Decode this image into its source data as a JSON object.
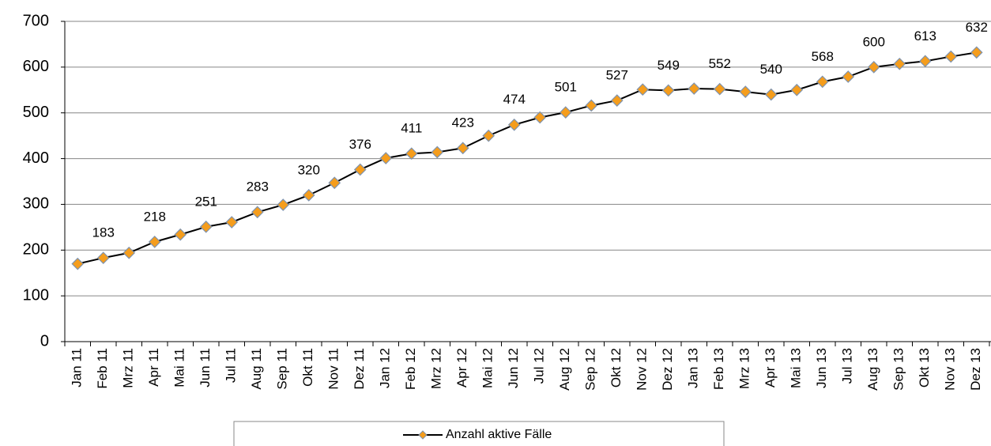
{
  "chart_data": {
    "type": "line",
    "categories": [
      "Jan 11",
      "Feb 11",
      "Mrz 11",
      "Apr 11",
      "Mai 11",
      "Jun 11",
      "Jul 11",
      "Aug 11",
      "Sep 11",
      "Okt 11",
      "Nov 11",
      "Dez 11",
      "Jan 12",
      "Feb 12",
      "Mrz 12",
      "Apr 12",
      "Mai 12",
      "Jun 12",
      "Jul 12",
      "Aug 12",
      "Sep 12",
      "Okt 12",
      "Nov 12",
      "Dez 12",
      "Jan 13",
      "Feb 13",
      "Mrz 13",
      "Apr 13",
      "Mai 13",
      "Jun 13",
      "Jul 13",
      "Aug 13",
      "Sep 13",
      "Okt 13",
      "Nov 13",
      "Dez 13"
    ],
    "series": [
      {
        "name": "Anzahl aktive Fälle",
        "color": "#f59d1c",
        "line_color": "#000000",
        "values": [
          170,
          183,
          194,
          218,
          234,
          251,
          261,
          283,
          299,
          320,
          347,
          376,
          401,
          411,
          414,
          423,
          450,
          474,
          490,
          501,
          516,
          527,
          551,
          549,
          553,
          552,
          546,
          540,
          550,
          568,
          579,
          600,
          607,
          613,
          623,
          632
        ],
        "value_labels": [
          null,
          "183",
          null,
          "218",
          null,
          "251",
          null,
          "283",
          null,
          "320",
          null,
          "376",
          null,
          "411",
          null,
          "423",
          null,
          "474",
          null,
          "501",
          null,
          "527",
          null,
          "549",
          null,
          "552",
          null,
          "540",
          null,
          "568",
          null,
          "600",
          null,
          "613",
          null,
          "632"
        ]
      }
    ],
    "ylim": [
      0,
      700
    ],
    "yticks": [
      0,
      100,
      200,
      300,
      400,
      500,
      600,
      700
    ],
    "grid": true,
    "legend": "bottom"
  }
}
